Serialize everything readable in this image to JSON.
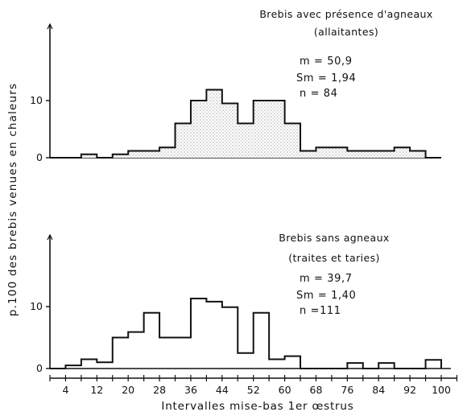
{
  "figure": {
    "ylabel": "p.100 des brebis venues en chaleurs",
    "xlabel": "Intervalles mise-bas 1er œstrus",
    "x_tick_labels": [
      "4",
      "12",
      "20",
      "28",
      "36",
      "44",
      "52",
      "60",
      "68",
      "76",
      "84",
      "92",
      "100"
    ]
  },
  "chart_data": [
    {
      "type": "bar",
      "histogram": true,
      "title": "Brebis avec présence d'agneaux",
      "subtitle": "(allaitantes)",
      "stats": {
        "m": "m = 50,9",
        "sm": "Sm = 1,94",
        "n": "n = 84"
      },
      "x_tick_labels": [
        "4",
        "12",
        "20",
        "28",
        "36",
        "44",
        "52",
        "60",
        "68",
        "76",
        "84",
        "92",
        "100"
      ],
      "bin_start": 0,
      "bin_width": 4,
      "bin_centers": [
        2,
        6,
        10,
        14,
        18,
        22,
        26,
        30,
        34,
        38,
        42,
        46,
        50,
        54,
        58,
        62,
        66,
        70,
        74,
        78,
        82,
        86,
        90,
        94,
        98
      ],
      "values": [
        0,
        0,
        0.6,
        0,
        0.6,
        1.2,
        1.2,
        1.8,
        6.0,
        10.0,
        11.9,
        9.5,
        6.0,
        10.0,
        10.0,
        6.0,
        1.2,
        1.8,
        1.8,
        1.2,
        1.2,
        1.2,
        1.8,
        1.2,
        0
      ],
      "y_ticks": [
        0,
        10
      ],
      "ylim": [
        0,
        22
      ],
      "xlim": [
        0,
        104
      ],
      "fill": "stippled"
    },
    {
      "type": "bar",
      "histogram": true,
      "title": "Brebis sans agneaux",
      "subtitle": "(traites et taries)",
      "stats": {
        "m": "m = 39,7",
        "sm": "Sm = 1,40",
        "n": "n =111"
      },
      "x_tick_labels": [
        "4",
        "12",
        "20",
        "28",
        "36",
        "44",
        "52",
        "60",
        "68",
        "76",
        "84",
        "92",
        "100"
      ],
      "bin_start": 0,
      "bin_width": 4,
      "bin_centers": [
        2,
        6,
        10,
        14,
        18,
        22,
        26,
        30,
        34,
        38,
        42,
        46,
        50,
        54,
        58,
        62,
        66,
        70,
        74,
        78,
        82,
        86,
        90,
        94,
        98
      ],
      "values": [
        0,
        0.5,
        1.5,
        1.0,
        5.0,
        5.9,
        9.0,
        5.0,
        5.0,
        11.3,
        10.8,
        9.9,
        2.5,
        9.0,
        1.5,
        2.0,
        0,
        0,
        0,
        0.9,
        0,
        0.9,
        0,
        0,
        1.4
      ],
      "y_ticks": [
        0,
        10
      ],
      "ylim": [
        0,
        22
      ],
      "xlim": [
        0,
        104
      ],
      "fill": "none"
    }
  ]
}
